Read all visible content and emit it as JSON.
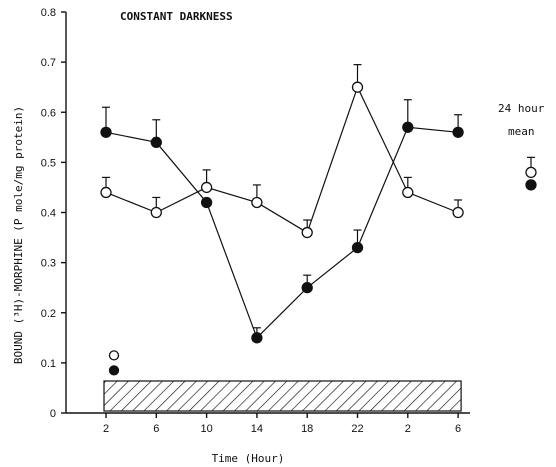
{
  "chart_data": {
    "type": "line",
    "title": "CONSTANT DARKNESS",
    "xlabel": "Time (Hour)",
    "ylabel": "BOUND (³H)-MORPHINE (P mole/mg protein)",
    "categories": [
      "2",
      "6",
      "10",
      "14",
      "18",
      "22",
      "2",
      "6"
    ],
    "ylim": [
      0,
      0.8
    ],
    "yticks": [
      "0",
      "0.1",
      "0.2",
      "0.3",
      "0.4",
      "0.5",
      "0.6",
      "0.7",
      "0.8"
    ],
    "series": [
      {
        "marker": "open-circle",
        "values": [
          0.44,
          0.4,
          0.45,
          0.42,
          0.36,
          0.65,
          0.44,
          0.4
        ],
        "errors": [
          0.03,
          0.03,
          0.035,
          0.035,
          0.025,
          0.045,
          0.03,
          0.025
        ]
      },
      {
        "marker": "filled-circle",
        "values": [
          0.56,
          0.54,
          0.42,
          0.15,
          0.25,
          0.33,
          0.57,
          0.56
        ],
        "errors": [
          0.05,
          0.045,
          0.0,
          0.02,
          0.025,
          0.035,
          0.055,
          0.035
        ]
      }
    ],
    "mean_24_hour": {
      "label_line1": "24 hour",
      "label_line2": "mean",
      "open": {
        "value": 0.48,
        "error": 0.03
      },
      "filled": {
        "value": 0.455
      }
    },
    "extra_markers": [
      {
        "marker": "open-circle",
        "value": 0.115
      },
      {
        "marker": "filled-circle",
        "value": 0.085
      }
    ],
    "dark_period_bar": {
      "x_start_index": 0,
      "x_end_index": 7,
      "fill": "diagonal-hatch"
    },
    "colors": {
      "ink": "#111111",
      "background": "#ffffff"
    }
  }
}
